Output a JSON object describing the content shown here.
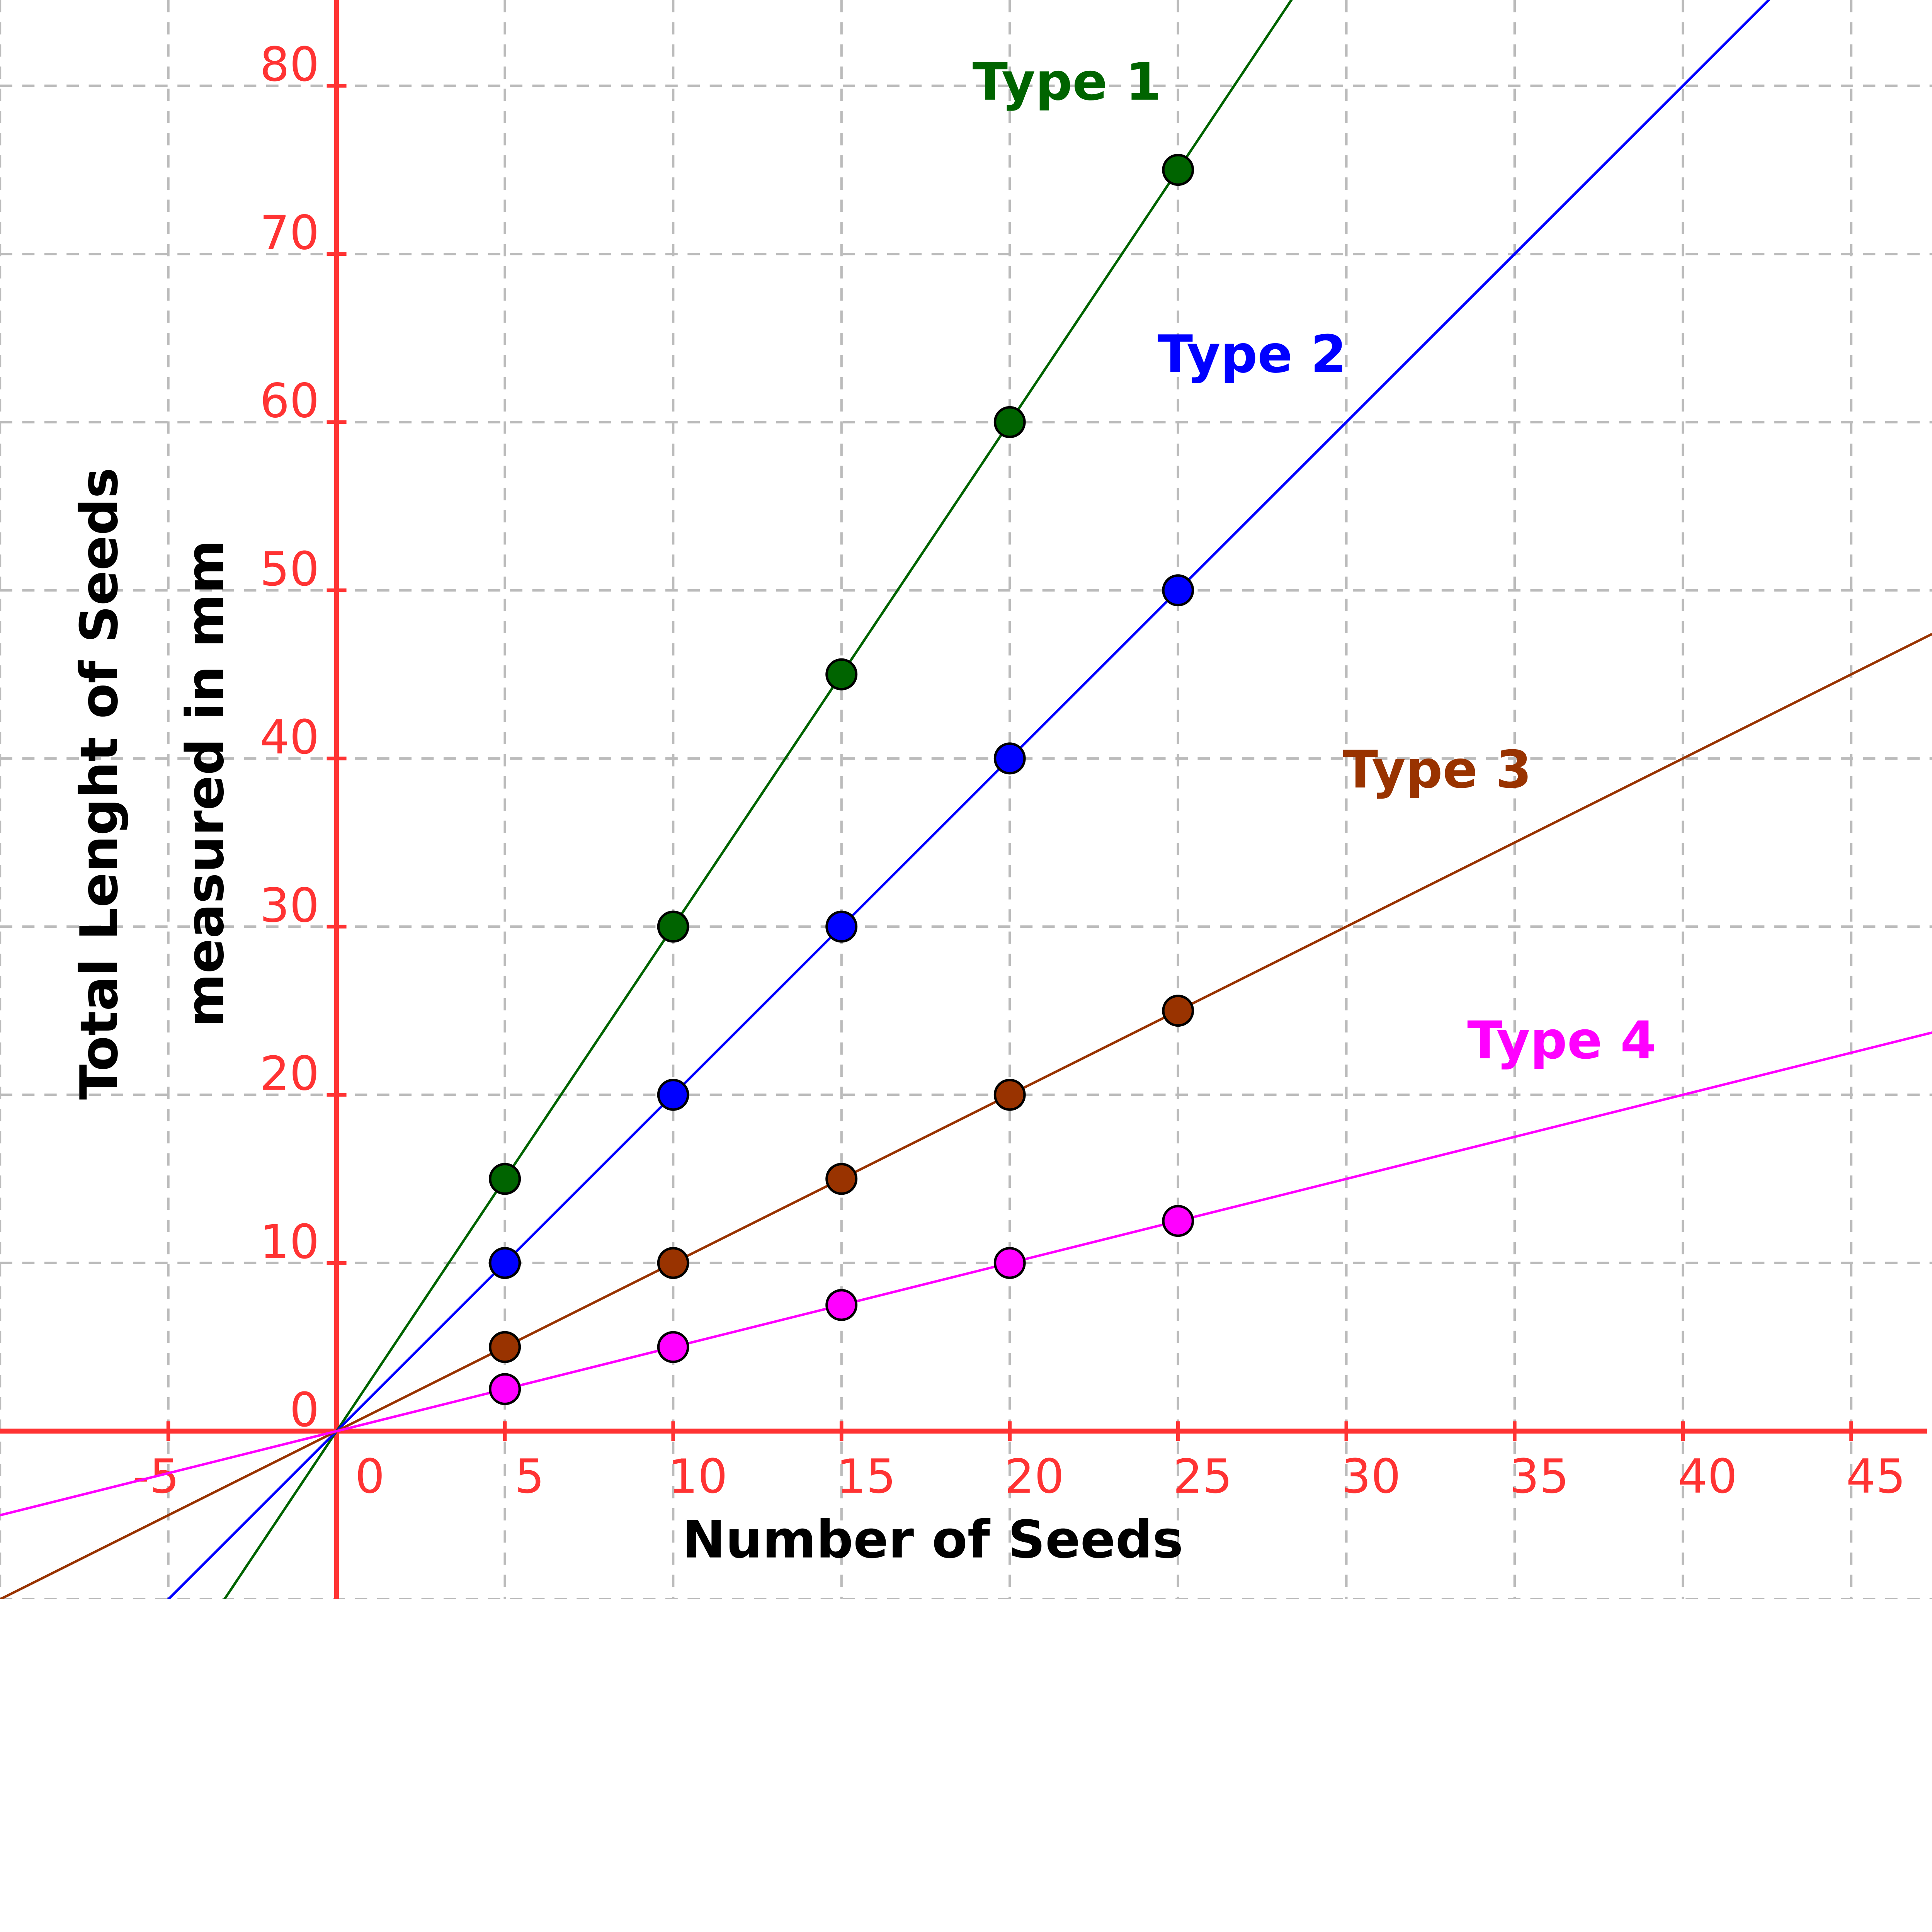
{
  "chart_data": {
    "type": "scatter",
    "title": "",
    "xlabel": "Number of Seeds",
    "ylabel_lines": [
      "Total Lenght of Seeds",
      "measured in mm"
    ],
    "xlim": [
      -10,
      47.4
    ],
    "ylim": [
      -10,
      85.1
    ],
    "grid": true,
    "axis_color": "#ff3333",
    "x_ticks": [
      -5,
      0,
      5,
      10,
      15,
      20,
      25,
      30,
      35,
      40,
      45
    ],
    "y_ticks": [
      0,
      10,
      20,
      30,
      40,
      50,
      60,
      70,
      80
    ],
    "series": [
      {
        "name": "Type 1",
        "color": "#006400",
        "slope": 3,
        "x": [
          5,
          10,
          15,
          20,
          25
        ],
        "y": [
          15,
          30,
          45,
          60,
          75
        ],
        "label_at": [
          21.7,
          80.2
        ]
      },
      {
        "name": "Type 2",
        "color": "#0000ff",
        "slope": 2,
        "x": [
          5,
          10,
          15,
          20,
          25
        ],
        "y": [
          10,
          20,
          30,
          40,
          50
        ],
        "label_at": [
          27.2,
          64
        ]
      },
      {
        "name": "Type 3",
        "color": "#993300",
        "slope": 1,
        "x": [
          5,
          10,
          15,
          20,
          25
        ],
        "y": [
          5,
          10,
          15,
          20,
          25
        ],
        "label_at": [
          32.7,
          39.3
        ]
      },
      {
        "name": "Type 4",
        "color": "#ff00ff",
        "slope": 0.5,
        "x": [
          5,
          10,
          15,
          20,
          25
        ],
        "y": [
          2.5,
          5,
          7.5,
          10,
          12.5
        ],
        "label_at": [
          36.4,
          23.2
        ]
      }
    ]
  }
}
